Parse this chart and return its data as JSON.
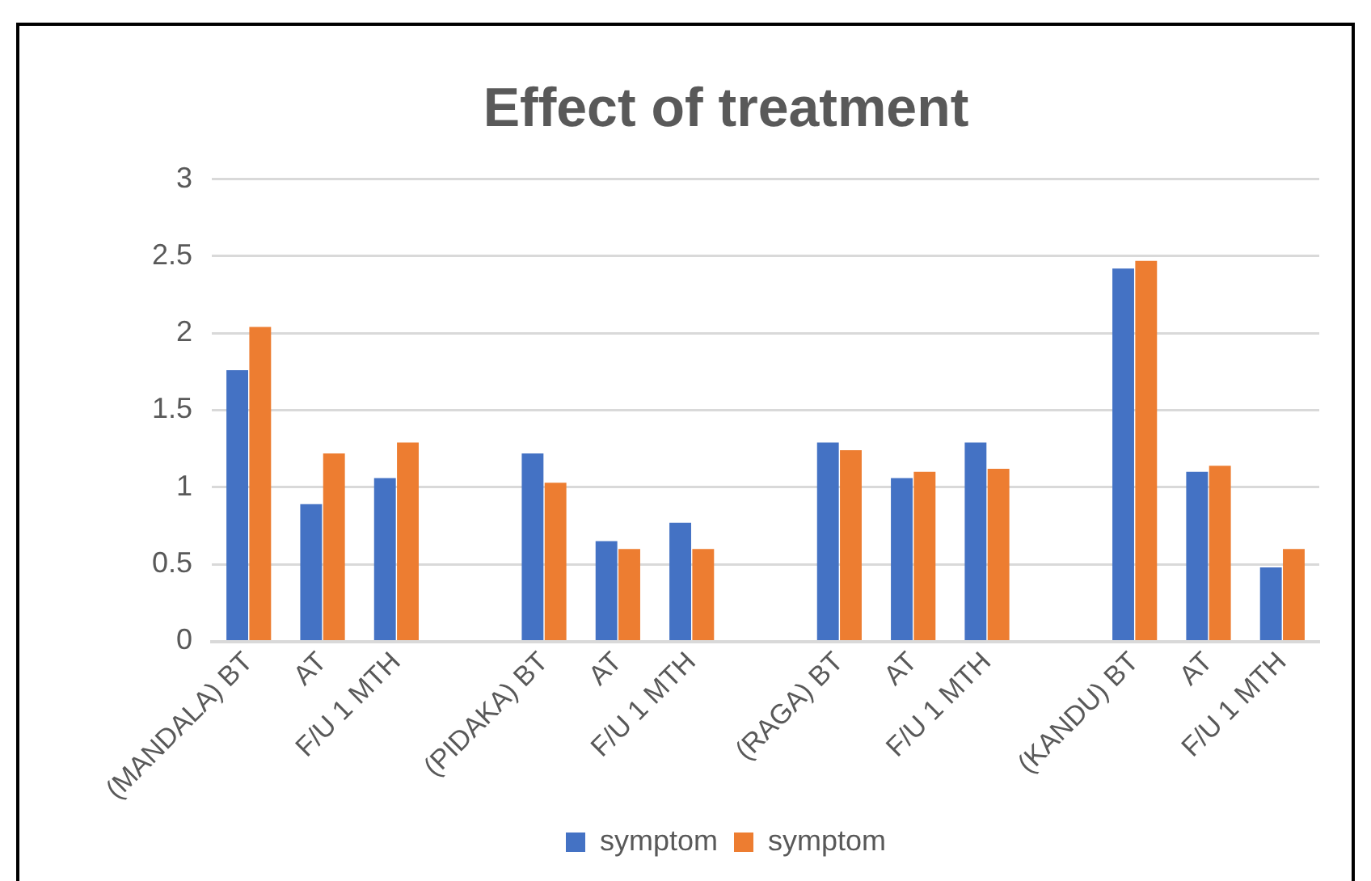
{
  "chart_data": {
    "type": "bar",
    "title": "Effect of treatment",
    "categories": [
      "(MANDALA) BT",
      "AT",
      "F/U 1 MTH",
      null,
      "(PIDAKA) BT",
      "AT",
      "F/U 1 MTH",
      null,
      "(RAGA) BT",
      "AT",
      "F/U 1 MTH",
      null,
      "(KANDU) BT",
      "AT",
      "F/U 1 MTH"
    ],
    "series": [
      {
        "name": "symptom",
        "color": "#4472c4",
        "values": [
          1.76,
          0.89,
          1.06,
          null,
          1.22,
          0.65,
          0.77,
          null,
          1.29,
          1.06,
          1.29,
          null,
          2.42,
          1.1,
          0.48
        ]
      },
      {
        "name": "symptom",
        "color": "#ed7d31",
        "values": [
          2.04,
          1.22,
          1.29,
          null,
          1.03,
          0.6,
          0.6,
          null,
          1.24,
          1.1,
          1.12,
          null,
          2.47,
          1.14,
          0.6
        ]
      }
    ],
    "ylim": [
      0,
      3
    ],
    "yticks": [
      0,
      0.5,
      1,
      1.5,
      2,
      2.5,
      3
    ],
    "grid": "y",
    "legend": "bottom"
  }
}
